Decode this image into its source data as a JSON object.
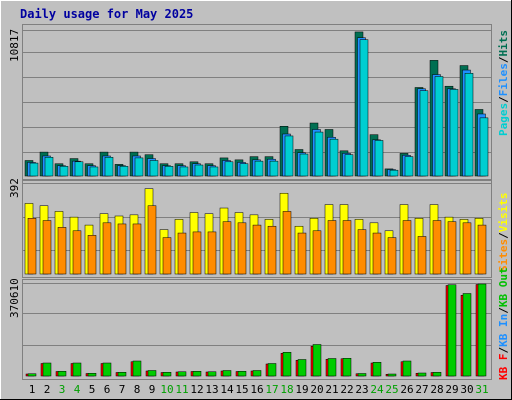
{
  "colors": {
    "background": "#c0c0c0",
    "plot_bg": "#c0c0c0",
    "grid": "#808080",
    "title": "#0000a0",
    "hits": "#006f52",
    "files": "#1e90ff",
    "pages": "#00ced1",
    "visits": "#ffff00",
    "sites": "#ff8c00",
    "kb_f": "#ff0000",
    "kb_in": "#1e90ff",
    "kb_out": "#00c000",
    "kb_bar_dark": "#ff0000",
    "kb_bar_light": "#00cc00",
    "weekend_label": "#00a000",
    "day_label": "#000000"
  },
  "chart_data": [
    {
      "type": "bar",
      "title": "Daily usage for May 2025",
      "panel": "top",
      "ymax_label": "10817",
      "legend": [
        "Pages",
        "/",
        "Files",
        "/",
        "Hits"
      ],
      "categories": [
        "1",
        "2",
        "3",
        "4",
        "5",
        "6",
        "7",
        "8",
        "9",
        "10",
        "11",
        "12",
        "13",
        "14",
        "15",
        "16",
        "17",
        "18",
        "19",
        "20",
        "21",
        "22",
        "23",
        "24",
        "25",
        "26",
        "27",
        "28",
        "29",
        "30",
        "31"
      ],
      "series": [
        {
          "name": "Hits",
          "values": [
            1200,
            1850,
            950,
            1350,
            950,
            1850,
            900,
            1850,
            1650,
            950,
            950,
            1100,
            950,
            1400,
            1250,
            1500,
            1500,
            3850,
            2050,
            4100,
            3600,
            1950,
            11150,
            3200,
            550,
            1750,
            6850,
            8950,
            6950,
            8550,
            5150
          ]
        },
        {
          "name": "Files",
          "values": [
            1050,
            1550,
            800,
            1150,
            800,
            1550,
            800,
            1550,
            1350,
            800,
            800,
            950,
            800,
            1200,
            1050,
            1250,
            1300,
            3250,
            1800,
            3600,
            3000,
            1750,
            10700,
            2800,
            500,
            1600,
            6750,
            7850,
            6750,
            8200,
            4800
          ]
        },
        {
          "name": "Pages",
          "values": [
            1000,
            1450,
            750,
            1100,
            700,
            1450,
            750,
            1400,
            1200,
            750,
            700,
            850,
            700,
            1100,
            950,
            1150,
            1150,
            3100,
            1700,
            3400,
            2850,
            1650,
            10550,
            2750,
            450,
            1500,
            6600,
            7700,
            6700,
            7950,
            4500
          ]
        }
      ]
    },
    {
      "type": "bar",
      "panel": "middle",
      "ymax_label": "392",
      "legend": [
        "Visits",
        "/",
        "Sites"
      ],
      "categories": [
        "1",
        "2",
        "3",
        "4",
        "5",
        "6",
        "7",
        "8",
        "9",
        "10",
        "11",
        "12",
        "13",
        "14",
        "15",
        "16",
        "17",
        "18",
        "19",
        "20",
        "21",
        "22",
        "23",
        "24",
        "25",
        "26",
        "27",
        "28",
        "29",
        "30",
        "31"
      ],
      "series": [
        {
          "name": "Visits",
          "values": [
            310,
            300,
            275,
            250,
            215,
            265,
            255,
            260,
            375,
            195,
            240,
            270,
            265,
            290,
            270,
            260,
            240,
            355,
            210,
            245,
            305,
            305,
            240,
            225,
            190,
            305,
            245,
            305,
            250,
            240,
            245
          ]
        },
        {
          "name": "Sites",
          "values": [
            245,
            235,
            205,
            190,
            170,
            225,
            220,
            220,
            300,
            160,
            180,
            185,
            185,
            230,
            225,
            215,
            210,
            275,
            180,
            190,
            235,
            235,
            195,
            180,
            160,
            235,
            165,
            235,
            230,
            225,
            215
          ]
        }
      ]
    },
    {
      "type": "bar",
      "panel": "bottom",
      "ymax_label": "370610",
      "legend": [
        "KB F",
        "/",
        "KB In",
        "/",
        "KB Out"
      ],
      "categories": [
        "1",
        "2",
        "3",
        "4",
        "5",
        "6",
        "7",
        "8",
        "9",
        "10",
        "11",
        "12",
        "13",
        "14",
        "15",
        "16",
        "17",
        "18",
        "19",
        "20",
        "21",
        "22",
        "23",
        "24",
        "25",
        "26",
        "27",
        "28",
        "29",
        "30",
        "31"
      ],
      "series": [
        {
          "name": "KB F",
          "values": [
            8000,
            50000,
            18000,
            50000,
            10000,
            50000,
            14000,
            57000,
            20000,
            14000,
            16000,
            18000,
            16000,
            20000,
            18000,
            20000,
            48000,
            91000,
            63000,
            119000,
            67000,
            69000,
            9000,
            52000,
            7000,
            57000,
            11000,
            14000,
            362000,
            323000,
            366000
          ]
        },
        {
          "name": "KB Out",
          "values": [
            9000,
            52000,
            19000,
            52000,
            11000,
            52000,
            15000,
            60000,
            22000,
            15000,
            17000,
            19000,
            17000,
            22000,
            19000,
            22000,
            50000,
            95000,
            66000,
            126000,
            70000,
            71000,
            10000,
            55000,
            8000,
            60000,
            12000,
            15000,
            365000,
            330000,
            368000
          ]
        }
      ]
    }
  ]
}
